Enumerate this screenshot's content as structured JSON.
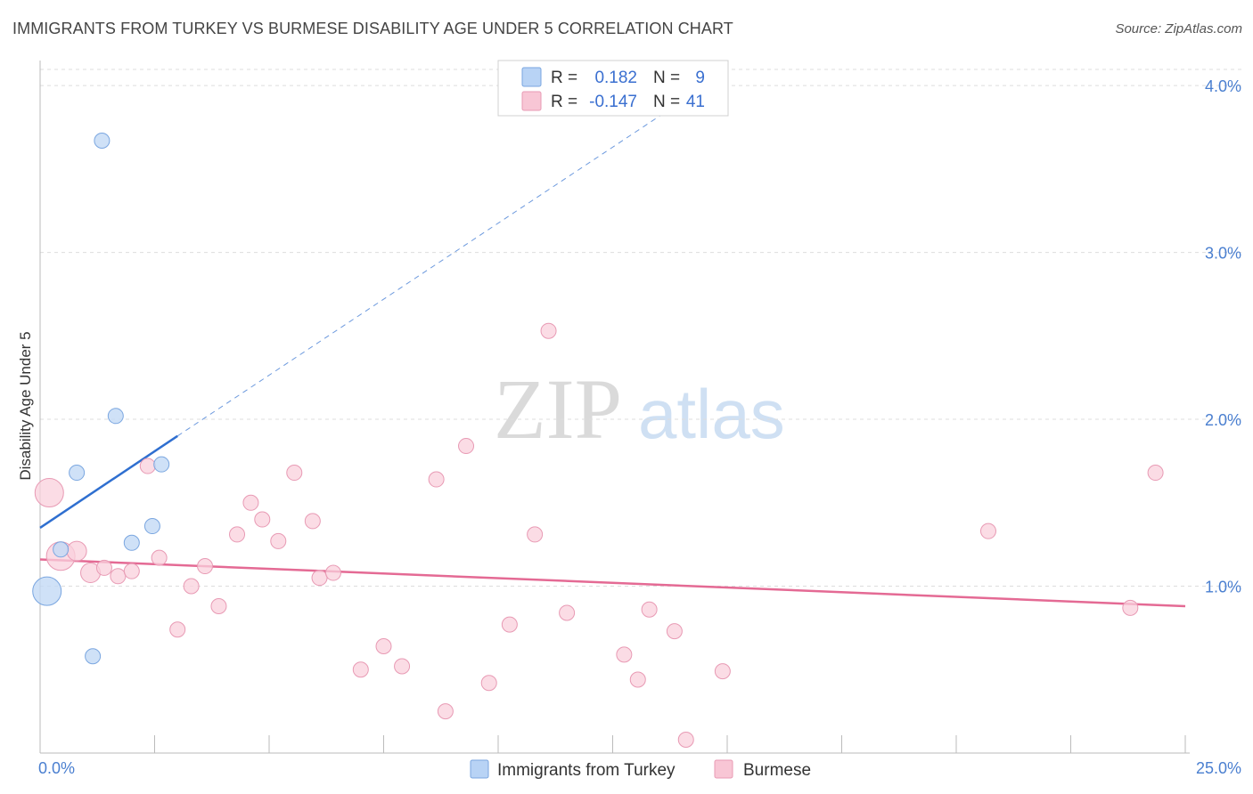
{
  "header": {
    "title": "IMMIGRANTS FROM TURKEY VS BURMESE DISABILITY AGE UNDER 5 CORRELATION CHART",
    "source": "Source: ZipAtlas.com"
  },
  "watermark": {
    "zip": "ZIP",
    "atlas": "atlas"
  },
  "legend": {
    "rows": [
      {
        "r_label": "R =",
        "r_value": "0.182",
        "n_label": "N =",
        "n_value": "9",
        "color": "#b8d3f5"
      },
      {
        "r_label": "R =",
        "r_value": "-0.147",
        "n_label": "N =",
        "n_value": "41",
        "color": "#f8c6d5"
      }
    ]
  },
  "bottom_legend": [
    {
      "label": "Immigrants from Turkey",
      "color": "#b8d3f5"
    },
    {
      "label": "Burmese",
      "color": "#f8c6d5"
    }
  ],
  "colors": {
    "turkey_fill": "#c3d9f5",
    "turkey_stroke": "#7aa6e0",
    "turkey_line": "#2f6fd0",
    "burmese_fill": "#f9d0dc",
    "burmese_stroke": "#e89ab4",
    "burmese_line": "#e46a94",
    "tick_label": "#4a7fd0"
  },
  "chart_data": {
    "type": "scatter",
    "title": "IMMIGRANTS FROM TURKEY VS BURMESE DISABILITY AGE UNDER 5 CORRELATION CHART",
    "xlabel": "",
    "ylabel": "Disability Age Under 5",
    "xlim": [
      0,
      25
    ],
    "ylim": [
      0,
      4.15
    ],
    "x_tick_labels": [
      "0.0%",
      "25.0%"
    ],
    "y_ticks": [
      1.0,
      2.0,
      3.0,
      4.0
    ],
    "y_tick_labels": [
      "1.0%",
      "2.0%",
      "3.0%",
      "4.0%"
    ],
    "grid": true,
    "series": [
      {
        "name": "Immigrants from Turkey",
        "R": 0.182,
        "N": 9,
        "points": [
          {
            "x": 0.15,
            "y": 0.97,
            "size": "large"
          },
          {
            "x": 0.45,
            "y": 1.22
          },
          {
            "x": 0.8,
            "y": 1.68
          },
          {
            "x": 1.15,
            "y": 0.58
          },
          {
            "x": 1.35,
            "y": 3.67
          },
          {
            "x": 1.65,
            "y": 2.02
          },
          {
            "x": 2.0,
            "y": 1.26
          },
          {
            "x": 2.45,
            "y": 1.36
          },
          {
            "x": 2.65,
            "y": 1.73
          }
        ],
        "trend_solid": {
          "x0": 0,
          "y0": 1.35,
          "x1": 3.0,
          "y1": 1.9
        },
        "trend_dashed": {
          "x0": 3.0,
          "y0": 1.9,
          "x1": 14.8,
          "y1": 4.05
        }
      },
      {
        "name": "Burmese",
        "R": -0.147,
        "N": 41,
        "points": [
          {
            "x": 0.2,
            "y": 1.56,
            "size": "large"
          },
          {
            "x": 0.45,
            "y": 1.18,
            "size": "large"
          },
          {
            "x": 0.8,
            "y": 1.21,
            "size": "medium"
          },
          {
            "x": 1.1,
            "y": 1.08,
            "size": "medium"
          },
          {
            "x": 1.4,
            "y": 1.11
          },
          {
            "x": 1.7,
            "y": 1.06
          },
          {
            "x": 2.0,
            "y": 1.09
          },
          {
            "x": 2.35,
            "y": 1.72
          },
          {
            "x": 2.6,
            "y": 1.17
          },
          {
            "x": 3.0,
            "y": 0.74
          },
          {
            "x": 3.3,
            "y": 1.0
          },
          {
            "x": 3.6,
            "y": 1.12
          },
          {
            "x": 3.9,
            "y": 0.88
          },
          {
            "x": 4.3,
            "y": 1.31
          },
          {
            "x": 4.6,
            "y": 1.5
          },
          {
            "x": 4.85,
            "y": 1.4
          },
          {
            "x": 5.2,
            "y": 1.27
          },
          {
            "x": 5.55,
            "y": 1.68
          },
          {
            "x": 5.95,
            "y": 1.39
          },
          {
            "x": 6.1,
            "y": 1.05
          },
          {
            "x": 6.4,
            "y": 1.08
          },
          {
            "x": 7.0,
            "y": 0.5
          },
          {
            "x": 7.5,
            "y": 0.64
          },
          {
            "x": 7.9,
            "y": 0.52
          },
          {
            "x": 8.65,
            "y": 1.64
          },
          {
            "x": 8.85,
            "y": 0.25
          },
          {
            "x": 9.3,
            "y": 1.84
          },
          {
            "x": 9.8,
            "y": 0.42
          },
          {
            "x": 10.25,
            "y": 0.77
          },
          {
            "x": 10.8,
            "y": 1.31
          },
          {
            "x": 11.1,
            "y": 2.53
          },
          {
            "x": 11.5,
            "y": 0.84
          },
          {
            "x": 12.75,
            "y": 0.59
          },
          {
            "x": 13.05,
            "y": 0.44
          },
          {
            "x": 13.3,
            "y": 0.86
          },
          {
            "x": 13.85,
            "y": 0.73
          },
          {
            "x": 14.1,
            "y": 0.08
          },
          {
            "x": 14.9,
            "y": 0.49
          },
          {
            "x": 20.7,
            "y": 1.33
          },
          {
            "x": 23.8,
            "y": 0.87
          },
          {
            "x": 24.35,
            "y": 1.68
          }
        ],
        "trend_solid": {
          "x0": 0,
          "y0": 1.16,
          "x1": 25.0,
          "y1": 0.88
        }
      }
    ]
  }
}
